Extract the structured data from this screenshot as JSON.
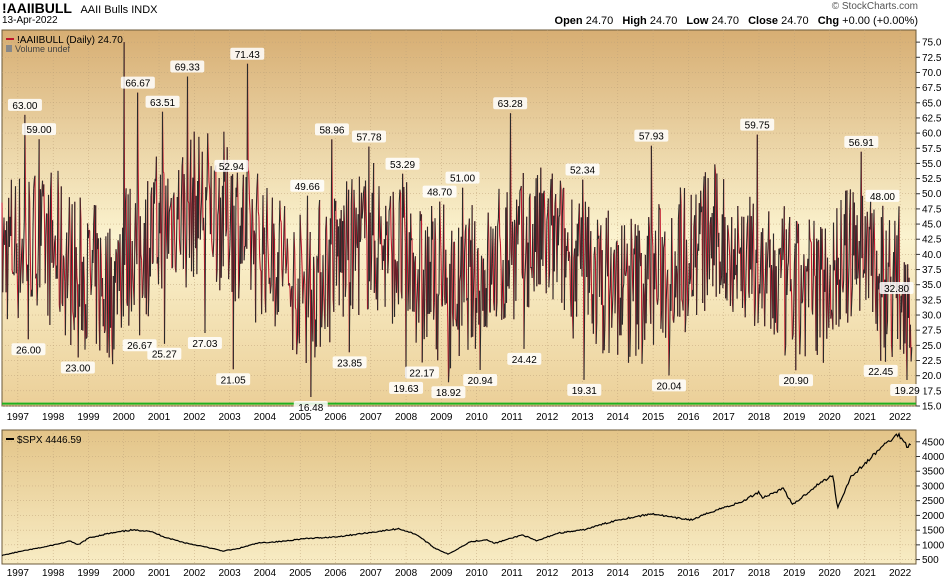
{
  "header": {
    "ticker": "!AAIIBULL",
    "name": "AAII Bulls",
    "exchange": "INDX",
    "date": "13-Apr-2022",
    "brand": "© StockCharts.com",
    "open_label": "Open",
    "open": "24.70",
    "high_label": "High",
    "high": "24.70",
    "low_label": "Low",
    "low": "24.70",
    "close_label": "Close",
    "close": "24.70",
    "chg_label": "Chg",
    "chg": "+0.00 (+0.00%)"
  },
  "colors": {
    "series_red": "#c0162c",
    "series_dark": "#2a2a2a",
    "support_line": "#1fb01f",
    "bg_top": "#d6ad72",
    "bg_mid": "#fbf3cf",
    "grid": "#bfa37a"
  },
  "chart_data": [
    {
      "type": "line",
      "legend": "!AAIIBULL (Daily) 24.70",
      "legend_note": "Volume undef",
      "ylim": [
        15,
        77
      ],
      "y_ticks": [
        15.0,
        17.5,
        20.0,
        22.5,
        25.0,
        27.5,
        30.0,
        32.5,
        35.0,
        37.5,
        40.0,
        42.5,
        45.0,
        47.5,
        50.0,
        52.5,
        55.0,
        57.5,
        60.0,
        62.5,
        65.0,
        67.5,
        70.0,
        72.5,
        75.0
      ],
      "y_tick_labels": [
        "15.0",
        "17.5",
        "20.0",
        "22.5",
        "25.0",
        "27.5",
        "30.0",
        "32.5",
        "35.0",
        "37.5",
        "40.0",
        "42.5",
        "45.0",
        "47.5",
        "50.0",
        "52.5",
        "55.0",
        "57.5",
        "60.0",
        "62.5",
        "65.0",
        "67.5",
        "70.0",
        "72.5",
        "75.0"
      ],
      "x_ticks": [
        1997,
        1998,
        1999,
        2000,
        2001,
        2002,
        2003,
        2004,
        2005,
        2006,
        2007,
        2008,
        2009,
        2010,
        2011,
        2012,
        2013,
        2014,
        2015,
        2016,
        2017,
        2018,
        2019,
        2020,
        2021,
        2022
      ],
      "x_tick_labels": [
        "1997",
        "1998",
        "1999",
        "2000",
        "2001",
        "2002",
        "2003",
        "2004",
        "2005",
        "2006",
        "2007",
        "2008",
        "2009",
        "2010",
        "2011",
        "2012",
        "2013",
        "2014",
        "2015",
        "2016",
        "2017",
        "2018",
        "2019",
        "2020",
        "2021",
        "2022"
      ],
      "xlim": [
        1996.55,
        2022.45
      ],
      "horizontal_line": 15.4,
      "annotations": [
        {
          "x": 1997.2,
          "y": 63.0,
          "label": "63.00",
          "pos": "above"
        },
        {
          "x": 1997.3,
          "y": 26.0,
          "label": "26.00",
          "pos": "below"
        },
        {
          "x": 1997.6,
          "y": 59.0,
          "label": "59.00",
          "pos": "above"
        },
        {
          "x": 1998.7,
          "y": 23.0,
          "label": "23.00",
          "pos": "below"
        },
        {
          "x": 2000.0,
          "y": 75.0,
          "label": "",
          "pos": "above"
        },
        {
          "x": 2000.4,
          "y": 66.67,
          "label": "66.67",
          "pos": "above"
        },
        {
          "x": 2000.45,
          "y": 26.67,
          "label": "26.67",
          "pos": "below"
        },
        {
          "x": 2001.1,
          "y": 63.51,
          "label": "63.51",
          "pos": "above"
        },
        {
          "x": 2001.15,
          "y": 25.27,
          "label": "25.27",
          "pos": "below"
        },
        {
          "x": 2001.8,
          "y": 69.33,
          "label": "69.33",
          "pos": "above"
        },
        {
          "x": 2002.3,
          "y": 27.03,
          "label": "27.03",
          "pos": "below"
        },
        {
          "x": 2003.05,
          "y": 52.94,
          "label": "52.94",
          "pos": "above"
        },
        {
          "x": 2003.1,
          "y": 21.05,
          "label": "21.05",
          "pos": "below"
        },
        {
          "x": 2003.5,
          "y": 71.43,
          "label": "71.43",
          "pos": "above"
        },
        {
          "x": 2005.2,
          "y": 49.66,
          "label": "49.66",
          "pos": "above"
        },
        {
          "x": 2005.3,
          "y": 16.48,
          "label": "16.48",
          "pos": "below"
        },
        {
          "x": 2005.9,
          "y": 58.96,
          "label": "58.96",
          "pos": "above"
        },
        {
          "x": 2006.4,
          "y": 23.85,
          "label": "23.85",
          "pos": "below"
        },
        {
          "x": 2006.95,
          "y": 57.78,
          "label": "57.78",
          "pos": "above"
        },
        {
          "x": 2007.9,
          "y": 53.29,
          "label": "53.29",
          "pos": "above"
        },
        {
          "x": 2008.0,
          "y": 19.63,
          "label": "19.63",
          "pos": "below"
        },
        {
          "x": 2008.45,
          "y": 22.17,
          "label": "22.17",
          "pos": "below"
        },
        {
          "x": 2008.95,
          "y": 48.7,
          "label": "48.70",
          "pos": "above"
        },
        {
          "x": 2009.2,
          "y": 18.92,
          "label": "18.92",
          "pos": "below"
        },
        {
          "x": 2009.6,
          "y": 51.0,
          "label": "51.00",
          "pos": "above"
        },
        {
          "x": 2010.1,
          "y": 20.94,
          "label": "20.94",
          "pos": "below"
        },
        {
          "x": 2010.95,
          "y": 63.28,
          "label": "63.28",
          "pos": "above"
        },
        {
          "x": 2011.35,
          "y": 24.42,
          "label": "24.42",
          "pos": "below"
        },
        {
          "x": 2013.0,
          "y": 52.34,
          "label": "52.34",
          "pos": "above"
        },
        {
          "x": 2013.05,
          "y": 19.31,
          "label": "19.31",
          "pos": "below"
        },
        {
          "x": 2014.95,
          "y": 57.93,
          "label": "57.93",
          "pos": "above"
        },
        {
          "x": 2015.45,
          "y": 20.04,
          "label": "20.04",
          "pos": "below"
        },
        {
          "x": 2017.95,
          "y": 59.75,
          "label": "59.75",
          "pos": "above"
        },
        {
          "x": 2019.05,
          "y": 20.9,
          "label": "20.90",
          "pos": "below"
        },
        {
          "x": 2020.9,
          "y": 56.91,
          "label": "56.91",
          "pos": "above"
        },
        {
          "x": 2021.5,
          "y": 48.0,
          "label": "48.00",
          "pos": "above"
        },
        {
          "x": 2021.45,
          "y": 22.45,
          "label": "22.45",
          "pos": "below"
        },
        {
          "x": 2021.9,
          "y": 32.8,
          "label": "32.80",
          "pos": "above"
        },
        {
          "x": 2022.2,
          "y": 19.29,
          "label": "19.29",
          "pos": "below"
        }
      ]
    },
    {
      "type": "line",
      "legend": "$SPX 4446.59",
      "ylim": [
        350,
        4900
      ],
      "y_ticks": [
        500,
        1000,
        1500,
        2000,
        2500,
        3000,
        3500,
        4000,
        4500
      ],
      "y_tick_labels": [
        "500",
        "1000",
        "1500",
        "2000",
        "2500",
        "3000",
        "3500",
        "4000",
        "4500"
      ],
      "xlim": [
        1996.55,
        2022.45
      ],
      "x_ticks": [
        1997,
        1998,
        1999,
        2000,
        2001,
        2002,
        2003,
        2004,
        2005,
        2006,
        2007,
        2008,
        2009,
        2010,
        2011,
        2012,
        2013,
        2014,
        2015,
        2016,
        2017,
        2018,
        2019,
        2020,
        2021,
        2022
      ],
      "x_tick_labels": [
        "1997",
        "1998",
        "1999",
        "2000",
        "2001",
        "2002",
        "2003",
        "2004",
        "2005",
        "2006",
        "2007",
        "2008",
        "2009",
        "2010",
        "2011",
        "2012",
        "2013",
        "2014",
        "2015",
        "2016",
        "2017",
        "2018",
        "2019",
        "2020",
        "2021",
        "2022"
      ],
      "anchors": [
        [
          1996.55,
          640
        ],
        [
          1997.0,
          760
        ],
        [
          1997.8,
          940
        ],
        [
          1998.5,
          1130
        ],
        [
          1998.7,
          990
        ],
        [
          1999.0,
          1230
        ],
        [
          1999.5,
          1370
        ],
        [
          2000.2,
          1500
        ],
        [
          2000.7,
          1480
        ],
        [
          2001.2,
          1250
        ],
        [
          2001.7,
          1080
        ],
        [
          2002.5,
          880
        ],
        [
          2002.8,
          790
        ],
        [
          2003.2,
          860
        ],
        [
          2003.8,
          1060
        ],
        [
          2004.5,
          1120
        ],
        [
          2005.0,
          1200
        ],
        [
          2006.0,
          1270
        ],
        [
          2007.0,
          1420
        ],
        [
          2007.8,
          1550
        ],
        [
          2008.3,
          1350
        ],
        [
          2008.8,
          900
        ],
        [
          2009.2,
          680
        ],
        [
          2009.8,
          1100
        ],
        [
          2010.3,
          1180
        ],
        [
          2010.5,
          1050
        ],
        [
          2011.3,
          1340
        ],
        [
          2011.7,
          1130
        ],
        [
          2012.3,
          1400
        ],
        [
          2013.0,
          1500
        ],
        [
          2014.0,
          1850
        ],
        [
          2015.0,
          2060
        ],
        [
          2015.6,
          1920
        ],
        [
          2016.1,
          1850
        ],
        [
          2016.8,
          2190
        ],
        [
          2017.5,
          2450
        ],
        [
          2018.0,
          2800
        ],
        [
          2018.1,
          2600
        ],
        [
          2018.7,
          2920
        ],
        [
          2018.95,
          2350
        ],
        [
          2019.6,
          2990
        ],
        [
          2020.1,
          3380
        ],
        [
          2020.22,
          2240
        ],
        [
          2020.6,
          3300
        ],
        [
          2021.0,
          3750
        ],
        [
          2021.5,
          4350
        ],
        [
          2021.95,
          4760
        ],
        [
          2022.2,
          4350
        ],
        [
          2022.3,
          4446.59
        ]
      ]
    }
  ]
}
